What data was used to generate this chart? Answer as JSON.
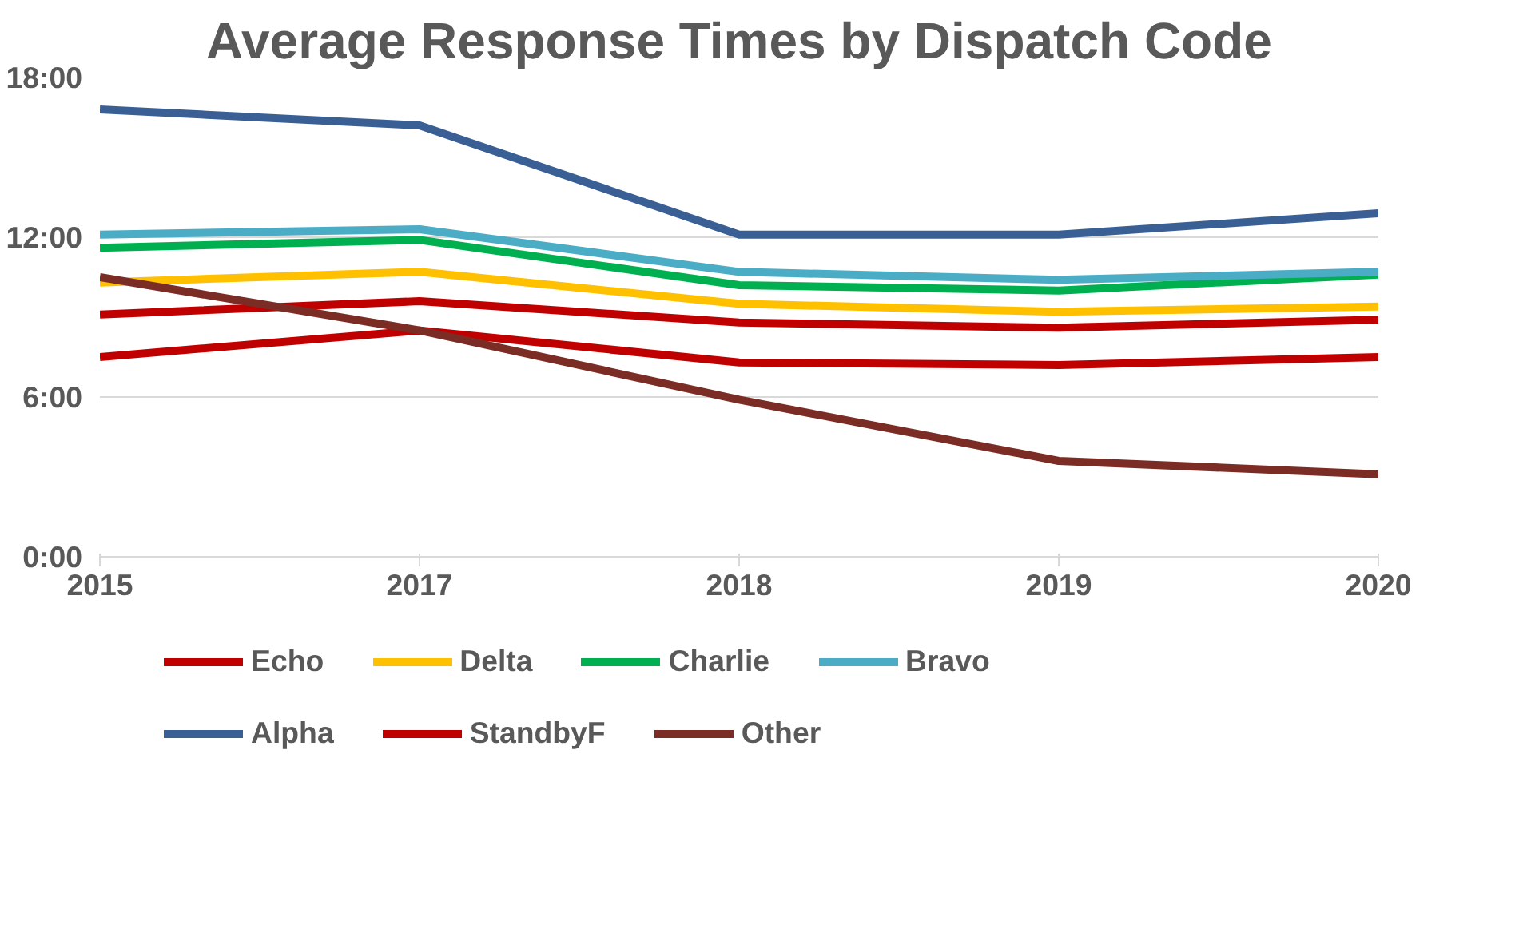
{
  "chart_data": {
    "type": "line",
    "title": "Average Response Times by Dispatch Code",
    "categories": [
      "2015",
      "2017",
      "2018",
      "2019",
      "2020"
    ],
    "series": [
      {
        "name": "Echo",
        "color": "#c00000",
        "values": [
          9.1,
          9.6,
          8.8,
          8.6,
          8.9
        ]
      },
      {
        "name": "Delta",
        "color": "#ffc000",
        "values": [
          10.3,
          10.7,
          9.5,
          9.2,
          9.4
        ]
      },
      {
        "name": "Charlie",
        "color": "#00b050",
        "values": [
          11.6,
          11.9,
          10.2,
          10.0,
          10.6
        ]
      },
      {
        "name": "Bravo",
        "color": "#4bacc6",
        "values": [
          12.1,
          12.3,
          10.7,
          10.4,
          10.7
        ]
      },
      {
        "name": "Alpha",
        "color": "#3a5f95",
        "values": [
          16.8,
          16.2,
          12.1,
          12.1,
          12.9
        ]
      },
      {
        "name": "StandbyF",
        "color": "#c00000",
        "values": [
          7.5,
          8.5,
          7.3,
          7.2,
          7.5
        ]
      },
      {
        "name": "Other",
        "color": "#7b2c24",
        "values": [
          10.5,
          8.5,
          5.9,
          3.6,
          3.1
        ]
      }
    ],
    "ylim": [
      0,
      18
    ],
    "yticks": [
      {
        "value": 0,
        "label": "0:00"
      },
      {
        "value": 6,
        "label": "6:00"
      },
      {
        "value": 12,
        "label": "12:00"
      },
      {
        "value": 18,
        "label": "18:00"
      }
    ],
    "grid": "y",
    "legend": "bottom",
    "marker": "none",
    "line_style": "solid"
  }
}
